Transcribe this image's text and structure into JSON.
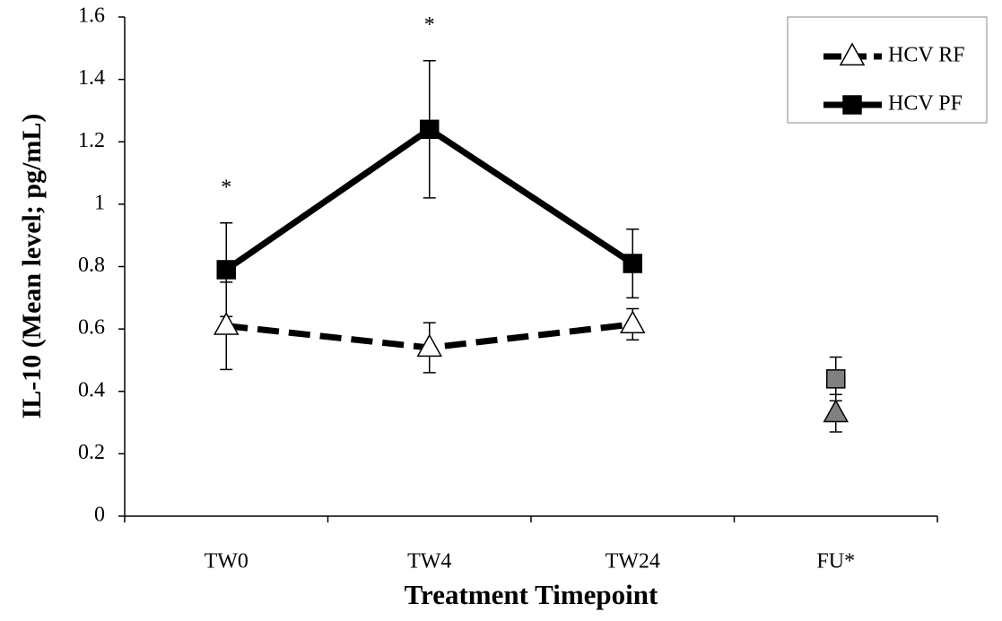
{
  "chart_data": {
    "type": "line",
    "x_label": "Treatment Timepoint",
    "y_label": "IL-10 (Mean level; pg/mL)",
    "categories": [
      "TW0",
      "TW4",
      "TW24",
      "FU*"
    ],
    "ylim": [
      0,
      1.6
    ],
    "yticks": [
      0,
      0.2,
      0.4,
      0.6,
      0.8,
      1,
      1.2,
      1.4,
      1.6
    ],
    "legend": "top-right",
    "series": [
      {
        "name": "HCV RF",
        "color": "#000000",
        "marker": "triangle",
        "dashed": true,
        "values": [
          0.61,
          0.54,
          0.615,
          0.33
        ],
        "errors": [
          0.14,
          0.08,
          0.05,
          0.06
        ],
        "point_colors": [
          "#ffffff",
          "#ffffff",
          "#ffffff",
          "#808080"
        ],
        "line_through": [
          true,
          true,
          true,
          false
        ]
      },
      {
        "name": "HCV PF",
        "color": "#000000",
        "marker": "square",
        "dashed": false,
        "values": [
          0.79,
          1.24,
          0.81,
          0.44
        ],
        "errors": [
          0.15,
          0.22,
          0.11,
          0.07
        ],
        "point_colors": [
          "#000000",
          "#000000",
          "#000000",
          "#808080"
        ],
        "line_through": [
          true,
          true,
          true,
          false
        ]
      }
    ],
    "annotations": [
      {
        "text": "*",
        "category": "TW0"
      },
      {
        "text": "*",
        "category": "TW4"
      }
    ]
  }
}
